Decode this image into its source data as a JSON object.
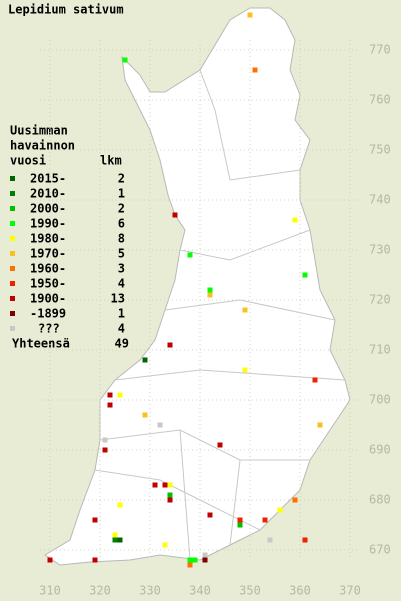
{
  "title": "Lepidium sativum",
  "legend": {
    "heading": [
      "Uusimman",
      "havainnon",
      "vuosi"
    ],
    "count_heading": "lkm",
    "items": [
      {
        "label": "2015-",
        "count": 2,
        "color": "#006400",
        "points": [
          [
            329,
            708
          ],
          [
            324,
            672
          ]
        ]
      },
      {
        "label": "2010-",
        "count": 1,
        "color": "#008000",
        "points": [
          [
            323,
            672
          ]
        ]
      },
      {
        "label": "2000-",
        "count": 2,
        "color": "#00c000",
        "points": [
          [
            334,
            681
          ],
          [
            348,
            675
          ]
        ]
      },
      {
        "label": "1990-",
        "count": 6,
        "color": "#00ff00",
        "points": [
          [
            325,
            768
          ],
          [
            338,
            729
          ],
          [
            361,
            725
          ],
          [
            342,
            722
          ],
          [
            338,
            668
          ],
          [
            339,
            668
          ]
        ]
      },
      {
        "label": "1980-",
        "count": 8,
        "color": "#ffff00",
        "points": [
          [
            359,
            736
          ],
          [
            349,
            706
          ],
          [
            324,
            701
          ],
          [
            334,
            683
          ],
          [
            324,
            679
          ],
          [
            356,
            678
          ],
          [
            323,
            673
          ],
          [
            333,
            671
          ]
        ]
      },
      {
        "label": "1970-",
        "count": 5,
        "color": "#f8c020",
        "points": [
          [
            350,
            777
          ],
          [
            342,
            721
          ],
          [
            349,
            718
          ],
          [
            329,
            697
          ],
          [
            364,
            695
          ]
        ]
      },
      {
        "label": "1960-",
        "count": 3,
        "color": "#ff7000",
        "points": [
          [
            351,
            766
          ],
          [
            359,
            680
          ],
          [
            338,
            667
          ]
        ]
      },
      {
        "label": "1950-",
        "count": 4,
        "color": "#f02000",
        "points": [
          [
            363,
            704
          ],
          [
            361,
            672
          ],
          [
            353,
            676
          ],
          [
            348,
            676
          ]
        ]
      },
      {
        "label": "1900-",
        "count": 13,
        "color": "#c00000",
        "points": [
          [
            335,
            737
          ],
          [
            334,
            711
          ],
          [
            322,
            701
          ],
          [
            322,
            699
          ],
          [
            344,
            691
          ],
          [
            321,
            690
          ],
          [
            331,
            683
          ],
          [
            333,
            683
          ],
          [
            334,
            680
          ],
          [
            319,
            676
          ],
          [
            342,
            677
          ],
          [
            310,
            668
          ],
          [
            319,
            668
          ]
        ]
      },
      {
        "label": "-1899",
        "count": 1,
        "color": "#800000",
        "points": [
          [
            341,
            668
          ]
        ]
      },
      {
        "label": "???",
        "count": 4,
        "color": "#c8c8c8",
        "points": [
          [
            332,
            695
          ],
          [
            321,
            692
          ],
          [
            354,
            672
          ],
          [
            341,
            669
          ]
        ]
      }
    ],
    "total_label": "Yhteensä",
    "total": 49
  },
  "axes": {
    "xticks": [
      310,
      320,
      330,
      340,
      350,
      360,
      370
    ],
    "yticks": [
      670,
      680,
      690,
      700,
      710,
      720,
      730,
      740,
      750,
      760,
      770
    ]
  }
}
